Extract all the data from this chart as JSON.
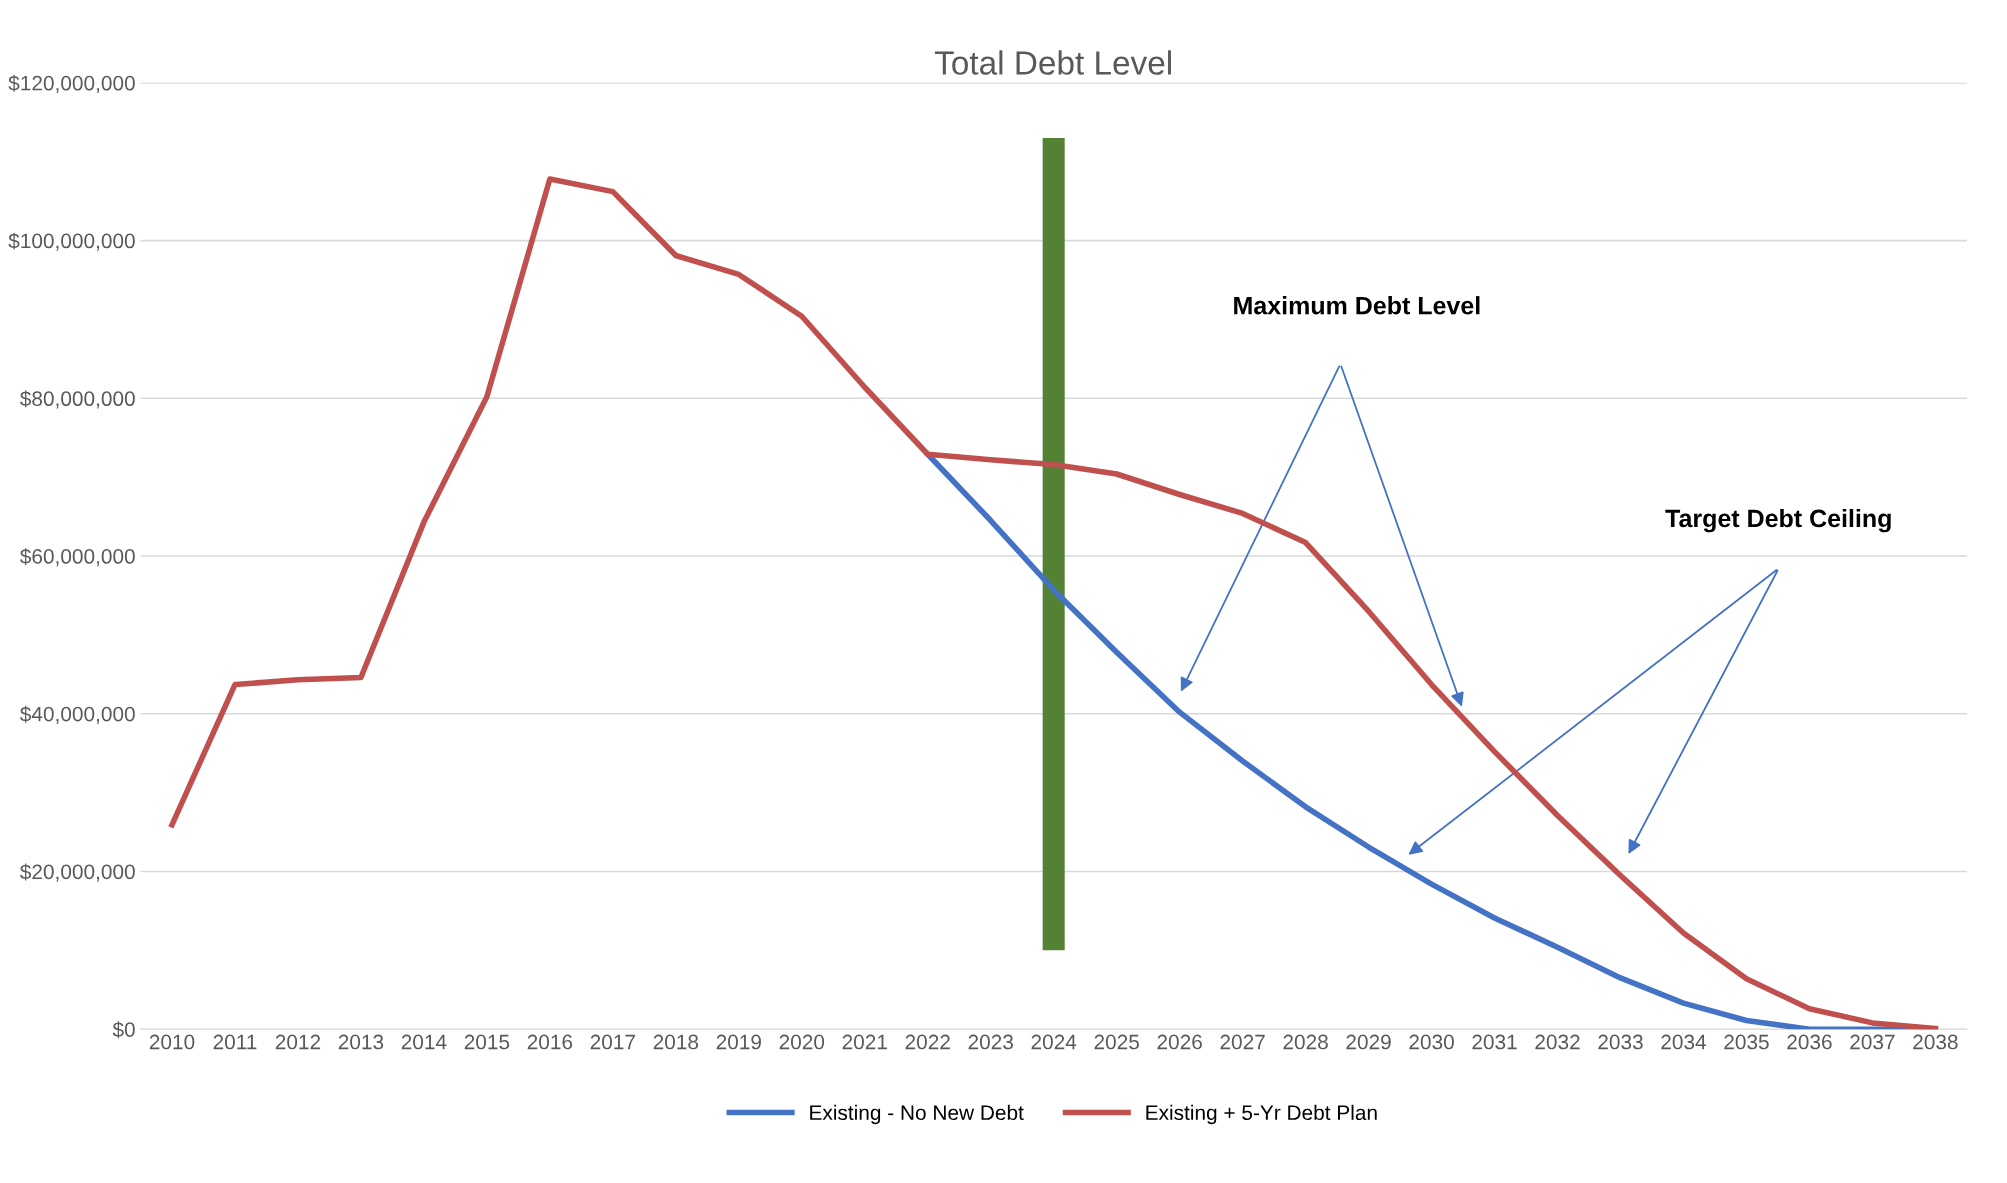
{
  "chart_data": {
    "type": "line",
    "title": "Total Debt Level",
    "categories": [
      "2010",
      "2011",
      "2012",
      "2013",
      "2014",
      "2015",
      "2016",
      "2017",
      "2018",
      "2019",
      "2020",
      "2021",
      "2022",
      "2023",
      "2024",
      "2025",
      "2026",
      "2027",
      "2028",
      "2029",
      "2030",
      "2031",
      "2032",
      "2033",
      "2034",
      "2035",
      "2036",
      "2037",
      "2038"
    ],
    "series": [
      {
        "type": "bar",
        "color": "#548235",
        "base": [
          null,
          null,
          null,
          null,
          null,
          null,
          null,
          null,
          null,
          null,
          null,
          null,
          null,
          null,
          10000000,
          null,
          null,
          null,
          null,
          null,
          null,
          null,
          null,
          null,
          null,
          null,
          null,
          null,
          null
        ],
        "values": [
          null,
          null,
          null,
          null,
          null,
          null,
          null,
          null,
          null,
          null,
          null,
          null,
          null,
          null,
          103000000,
          null,
          null,
          null,
          null,
          null,
          null,
          null,
          null,
          null,
          null,
          null,
          null,
          null,
          null
        ]
      },
      {
        "name": "Existing - No New Debt",
        "color": "#4472c4",
        "values": [
          null,
          null,
          null,
          null,
          null,
          null,
          null,
          null,
          null,
          null,
          null,
          null,
          72900000,
          64500000,
          55700000,
          47800000,
          40200000,
          34000000,
          28200000,
          23100000,
          18400000,
          14100000,
          10400000,
          6500000,
          3300000,
          1100000,
          0,
          0,
          0
        ]
      },
      {
        "name": "Existing + 5-Yr Debt Plan",
        "color": "#c0504d",
        "values": [
          25900000,
          43700000,
          44300000,
          44600000,
          64300000,
          80200000,
          107800000,
          106200000,
          98100000,
          95700000,
          90400000,
          81400000,
          72900000,
          72200000,
          71600000,
          70400000,
          67800000,
          65400000,
          61700000,
          53000000,
          43700000,
          35200000,
          27100000,
          19500000,
          12200000,
          6400000,
          2600000,
          800000,
          100000
        ]
      }
    ],
    "ylim": [
      0,
      120000000
    ],
    "yticks": [
      {
        "value": 0,
        "label": "$0"
      },
      {
        "value": 20000000,
        "label": "$20,000,000"
      },
      {
        "value": 40000000,
        "label": "$40,000,000"
      },
      {
        "value": 60000000,
        "label": "$60,000,000"
      },
      {
        "value": 80000000,
        "label": "$80,000,000"
      },
      {
        "value": 100000000,
        "label": "$100,000,000"
      },
      {
        "value": 120000000,
        "label": "$120,000,000"
      }
    ],
    "grid": "y",
    "legend": "bottom",
    "marker": "none",
    "line_style": "solid",
    "annotations": [
      "Maximum Debt Level",
      "Target Debt Ceiling"
    ]
  }
}
